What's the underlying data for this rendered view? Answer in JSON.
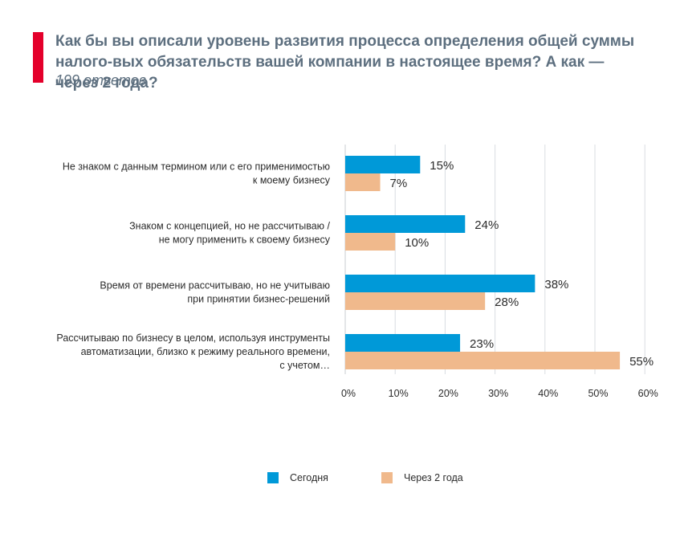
{
  "header": {
    "title": "Как бы вы описали уровень развития процесса определения общей суммы налого-вых обязательств вашей компании в настоящее время? А как — через 2 года?",
    "subtitle": "199 ответов"
  },
  "colors": {
    "accent": "#e4002b",
    "today": "#0099d8",
    "in_two_years": "#f0b98c",
    "grid": "#d9dde1",
    "title": "#5d6f7f"
  },
  "chart_data": {
    "type": "bar",
    "orientation": "horizontal",
    "categories": [
      [
        "Не знаком с данным термином или с его применимостью",
        "к моему бизнесу"
      ],
      [
        "Знаком с концепцией, но не рассчитываю /",
        "не могу применить к своему бизнесу"
      ],
      [
        "Время от времени рассчитываю, но не учитываю",
        "при принятии бизнес-решений"
      ],
      [
        "Рассчитываю по бизнесу в целом, используя инструменты",
        "автоматизации, близко к режиму реального времени,",
        "с учетом…"
      ]
    ],
    "series": [
      {
        "name": "Сегодня",
        "values": [
          15,
          24,
          38,
          23
        ],
        "labels": [
          "15%",
          "24%",
          "38%",
          "23%"
        ]
      },
      {
        "name": "Через 2 года",
        "values": [
          7,
          10,
          28,
          55
        ],
        "labels": [
          "7%",
          "10%",
          "28%",
          "55%"
        ]
      }
    ],
    "xlim": [
      0,
      60
    ],
    "xticks": [
      "0%",
      "10%",
      "20%",
      "30%",
      "40%",
      "50%",
      "60%"
    ],
    "grid": true,
    "legend": "bottom"
  }
}
